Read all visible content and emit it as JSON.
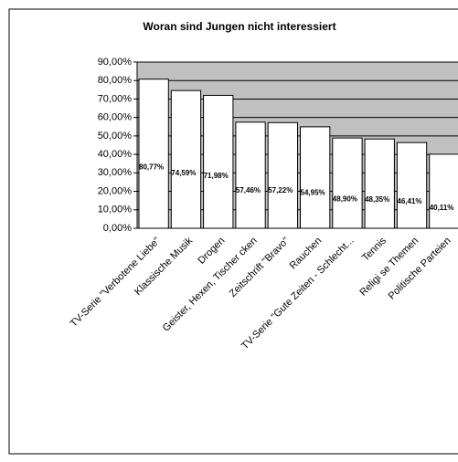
{
  "chart_data": {
    "type": "bar",
    "title": "Woran sind Jungen nicht interessiert",
    "categories": [
      "TV-Serie \"Verbotene Liebe\"",
      "Klassische Musik",
      "Drogen",
      "Geister, Hexen, Tischer cken",
      "Zeitschrift \"Bravo\"",
      "Rauchen",
      "TV-Serie \"Gute Zeiten - Schlecht...",
      "Tennis",
      "Religi se Themen",
      "Politische Parteien"
    ],
    "values": [
      80.77,
      74.59,
      71.98,
      57.46,
      57.22,
      54.95,
      48.9,
      48.35,
      46.41,
      40.11
    ],
    "value_labels": [
      "80,77%",
      "74,59%",
      "71,98%",
      "57,46%",
      "57,22%",
      "54,95%",
      "48,90%",
      "48,35%",
      "46,41%",
      "40,11%"
    ],
    "color": "#ffffff",
    "background": "#c0c0c0",
    "ylim": [
      0,
      90
    ],
    "yticks": [
      {
        "value": 0,
        "label": "0,00%"
      },
      {
        "value": 10,
        "label": "10,00%"
      },
      {
        "value": 20,
        "label": "20,00%"
      },
      {
        "value": 30,
        "label": "30,00%"
      },
      {
        "value": 40,
        "label": "40,00%"
      },
      {
        "value": 50,
        "label": "50,00%"
      },
      {
        "value": 60,
        "label": "60,00%"
      },
      {
        "value": 70,
        "label": "70,00%"
      },
      {
        "value": 80,
        "label": "80,00%"
      },
      {
        "value": 90,
        "label": "90,00%"
      }
    ],
    "grid": true
  }
}
